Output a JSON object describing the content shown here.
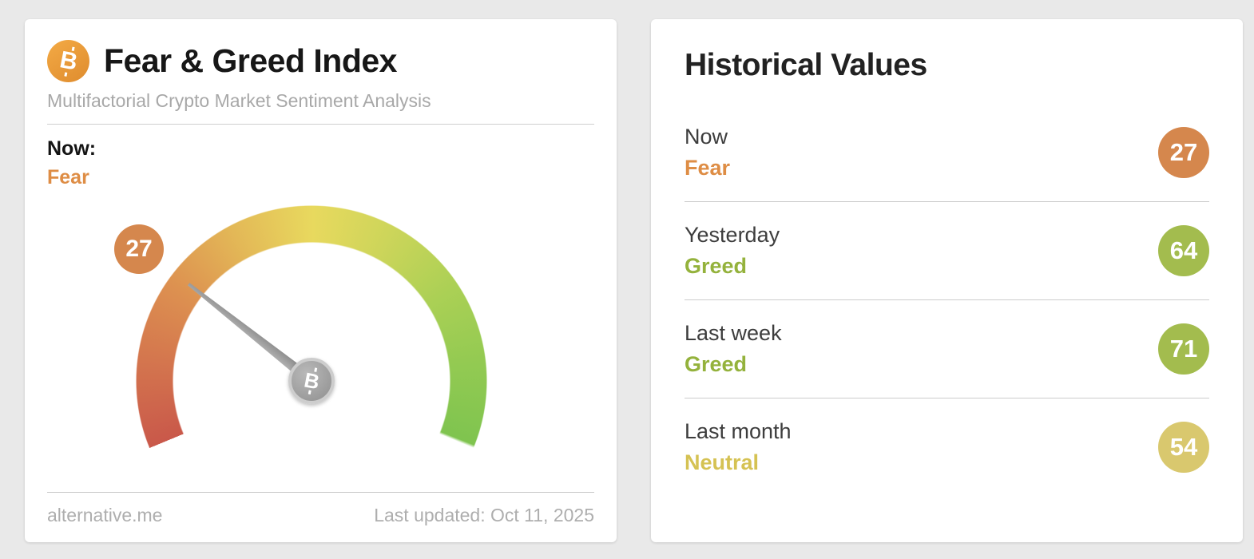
{
  "fgi_card": {
    "title": "Fear & Greed Index",
    "subtitle": "Multifactorial Crypto Market Sentiment Analysis",
    "now_label": "Now:",
    "now_classification": "Fear",
    "gauge_value": "27",
    "footer_source": "alternative.me",
    "footer_updated": "Last updated: Oct 11, 2025",
    "bitcoin_glyph": "B"
  },
  "historical_card": {
    "title": "Historical Values",
    "rows": [
      {
        "label": "Now",
        "classification": "Fear",
        "value": "27",
        "text_color": "#de8d45",
        "badge_color": "#d5874d"
      },
      {
        "label": "Yesterday",
        "classification": "Greed",
        "value": "64",
        "text_color": "#94b23c",
        "badge_color": "#a3bc4e"
      },
      {
        "label": "Last week",
        "classification": "Greed",
        "value": "71",
        "text_color": "#94b23c",
        "badge_color": "#a3bc4e"
      },
      {
        "label": "Last month",
        "classification": "Neutral",
        "value": "54",
        "text_color": "#d5c253",
        "badge_color": "#d9c86e"
      }
    ]
  },
  "colors": {
    "fear_orange": "#de8d45",
    "gauge_badge_orange": "#d5874d"
  },
  "chart_data": {
    "type": "gauge",
    "title": "Fear & Greed Index",
    "subtitle": "Multifactorial Crypto Market Sentiment Analysis",
    "value": 27,
    "min": 0,
    "max": 100,
    "classification": "Fear",
    "scale_colors": [
      "#c9584a",
      "#dd9150",
      "#e8d95e",
      "#abd055",
      "#7fc44f"
    ],
    "legend_position": "none",
    "source": "alternative.me",
    "last_updated_text": "Last updated: Oct 11, 2025",
    "historical": [
      {
        "label": "Now",
        "value": 27,
        "classification": "Fear"
      },
      {
        "label": "Yesterday",
        "value": 64,
        "classification": "Greed"
      },
      {
        "label": "Last week",
        "value": 71,
        "classification": "Greed"
      },
      {
        "label": "Last month",
        "value": 54,
        "classification": "Neutral"
      }
    ]
  }
}
